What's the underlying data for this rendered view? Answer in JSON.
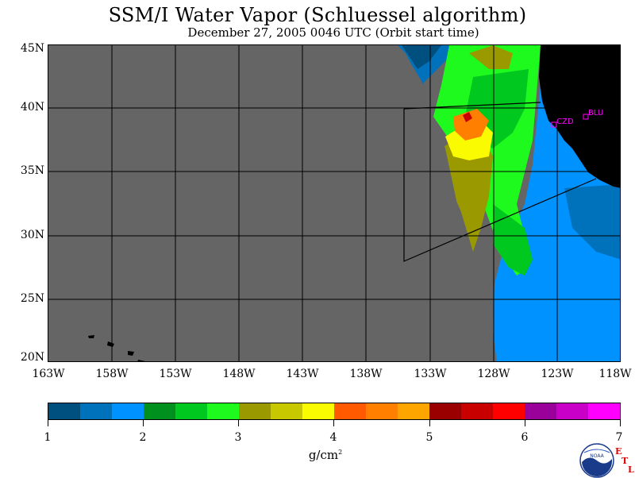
{
  "title": "SSM/I Water Vapor (Schluessel algorithm)",
  "subtitle": "December 27, 2005  0046 UTC  (Orbit start time)",
  "map": {
    "lat_labels": [
      "45N",
      "40N",
      "35N",
      "30N",
      "25N",
      "20N"
    ],
    "lon_labels": [
      "163W",
      "158W",
      "153W",
      "148W",
      "143W",
      "138W",
      "133W",
      "128W",
      "123W",
      "118W"
    ],
    "stations": [
      {
        "name": "CZD",
        "label": "CZD"
      },
      {
        "name": "BLU",
        "label": "BLU"
      }
    ],
    "colors": {
      "no_data": "#656565",
      "land": "#000000",
      "station": "#ff00ff",
      "grid": "#000000"
    }
  },
  "colorbar": {
    "colors": [
      "#00507f",
      "#0072bb",
      "#0093ff",
      "#00901e",
      "#00c81e",
      "#1efa1e",
      "#9a9a00",
      "#c8c800",
      "#fafa00",
      "#ff5a00",
      "#ff7f00",
      "#ffa500",
      "#9a0000",
      "#c80000",
      "#ff0000",
      "#9a009a",
      "#c800c8",
      "#ff00ff"
    ],
    "tick_labels": [
      "1",
      "2",
      "3",
      "4",
      "5",
      "6",
      "7"
    ],
    "units": "g/cm",
    "units_exp": "2"
  },
  "logo": {
    "text": "NOAA",
    "etl_letters": [
      "E",
      "T",
      "L"
    ]
  }
}
